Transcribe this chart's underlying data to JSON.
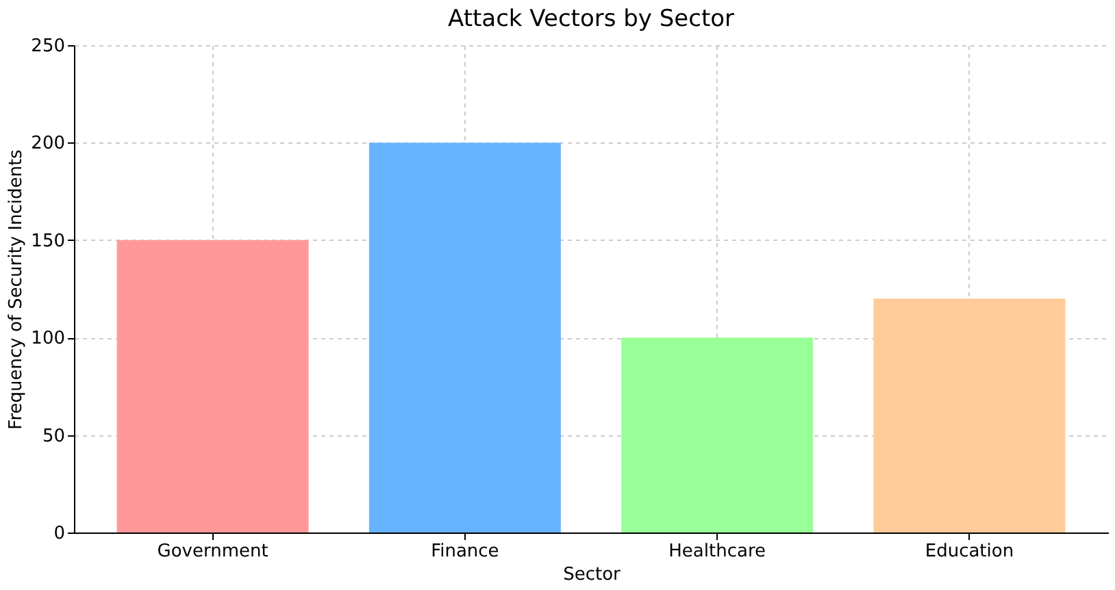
{
  "chart_data": {
    "type": "bar",
    "title": "Attack Vectors by Sector",
    "xlabel": "Sector",
    "ylabel": "Frequency of Security Incidents",
    "categories": [
      "Government",
      "Finance",
      "Healthcare",
      "Education"
    ],
    "values": [
      150,
      200,
      100,
      120
    ],
    "colors": [
      "#ff9999",
      "#66b3ff",
      "#99ff99",
      "#ffcc99"
    ],
    "ylim": [
      0,
      250
    ],
    "yticks": [
      0,
      50,
      100,
      150,
      200,
      250
    ],
    "grid": true
  }
}
